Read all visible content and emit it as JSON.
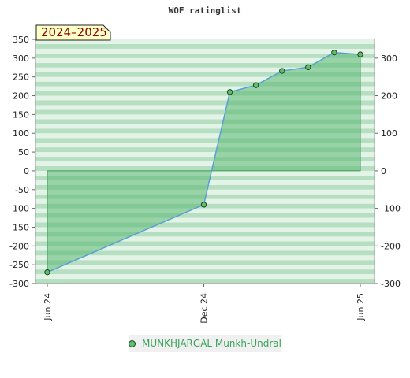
{
  "chart_data": {
    "type": "area",
    "title": "WOF ratinglist",
    "season_label": "2024–2025",
    "xlabel": "",
    "ylabel": "",
    "ylim": [
      -300,
      350
    ],
    "y_ticks_left": [
      350,
      300,
      250,
      200,
      150,
      100,
      50,
      0,
      -50,
      -100,
      -150,
      -200,
      -250,
      -300
    ],
    "y_ticks_right": [
      300,
      200,
      100,
      0,
      -100,
      -200,
      -300
    ],
    "x_ticks": [
      {
        "label": "Jun 24",
        "t": 0
      },
      {
        "label": "Dec 24",
        "t": 6
      },
      {
        "label": "Jun 25",
        "t": 12
      }
    ],
    "grid": true,
    "legend_position": "bottom-center",
    "colors": {
      "fill": "#5ab873",
      "line": "#5aa0d6",
      "marker": "#5cbf6b",
      "stripe_dark": "#b6dec0",
      "stripe_light": "#e4f3e7"
    },
    "series": [
      {
        "name": "MUNKHJARGAL Munkh-Undral",
        "points": [
          {
            "t": 0,
            "y": -270
          },
          {
            "t": 6,
            "y": -90
          },
          {
            "t": 7,
            "y": 210
          },
          {
            "t": 8,
            "y": 228
          },
          {
            "t": 9,
            "y": 266
          },
          {
            "t": 10,
            "y": 276
          },
          {
            "t": 11,
            "y": 315
          },
          {
            "t": 12,
            "y": 310
          }
        ]
      }
    ]
  }
}
